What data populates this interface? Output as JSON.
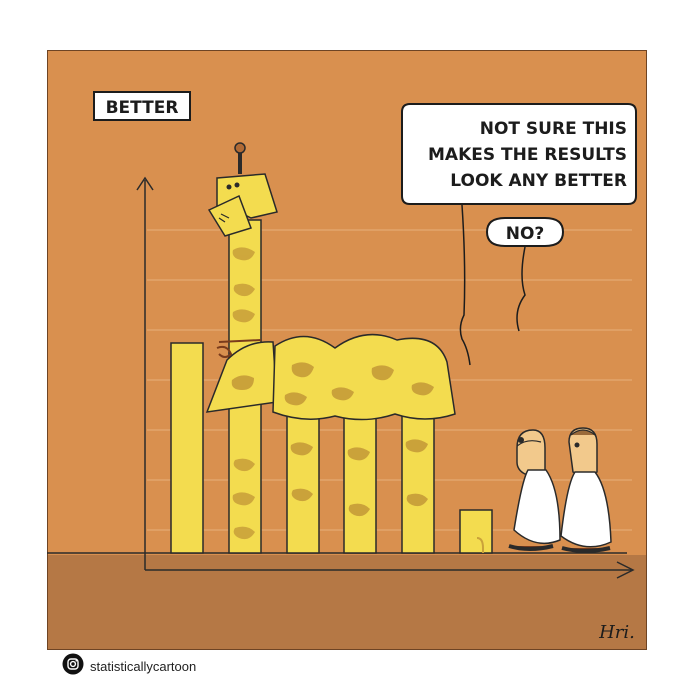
{
  "cartoon": {
    "axis_label": "BETTER",
    "speech_bubble_line1": "NOT SURE THIS",
    "speech_bubble_line2": "MAKES THE RESULTS",
    "speech_bubble_line3": "LOOK ANY BETTER",
    "reply_bubble": "NO?",
    "signature": "Hri."
  },
  "footer": {
    "instagram_icon": "instagram-icon",
    "handle": "statisticallycartoon"
  },
  "colors": {
    "background": "#d9904f",
    "floor": "#b57845",
    "bar_yellow": "#f3dc4f",
    "giraffe_patch": "#caa23a",
    "ink": "#1c1c1c"
  }
}
